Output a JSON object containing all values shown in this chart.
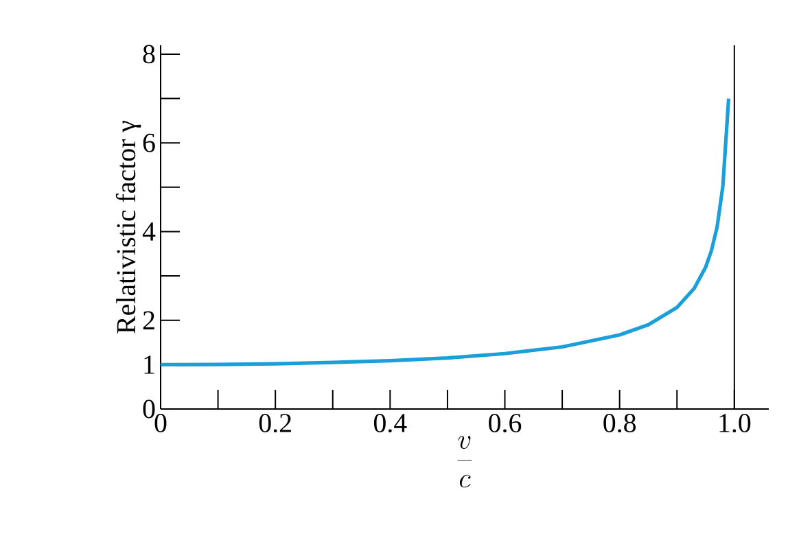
{
  "chart_data": {
    "type": "line",
    "xlabel": "\\frac{v}{c}",
    "ylabel": "Relativistic factor γ",
    "x": [
      0,
      0.1,
      0.2,
      0.3,
      0.4,
      0.5,
      0.6,
      0.7,
      0.8,
      0.85,
      0.9,
      0.93,
      0.95,
      0.96,
      0.97,
      0.98,
      0.99
    ],
    "series": [
      {
        "color": "#1a9fd8",
        "values": [
          1,
          1.005,
          1.02,
          1.05,
          1.09,
          1.15,
          1.25,
          1.4,
          1.67,
          1.9,
          2.29,
          2.72,
          3.2,
          3.57,
          4.11,
          5.03,
          7.0
        ]
      }
    ],
    "xlim": [
      0,
      1.06
    ],
    "ylim": [
      0,
      8.2
    ],
    "xticks": [
      0,
      {
        "value": 0.1,
        "label": null
      },
      0.2,
      {
        "value": 0.3,
        "label": null
      },
      0.4,
      {
        "value": 0.5,
        "label": null
      },
      0.6,
      {
        "value": 0.7,
        "label": null
      },
      0.8,
      {
        "value": 0.9,
        "label": null
      },
      {
        "value": 1,
        "label": "1.0"
      }
    ],
    "yticks": [
      0,
      1,
      2,
      {
        "value": 3,
        "label": null
      },
      4,
      {
        "value": 5,
        "label": null
      },
      6,
      {
        "value": 7,
        "label": null
      },
      8
    ],
    "ref_lines": [
      {
        "axis": "x",
        "value": 1,
        "color": "#000000"
      }
    ],
    "grid": false,
    "marker": "none",
    "line_style": "solid"
  }
}
